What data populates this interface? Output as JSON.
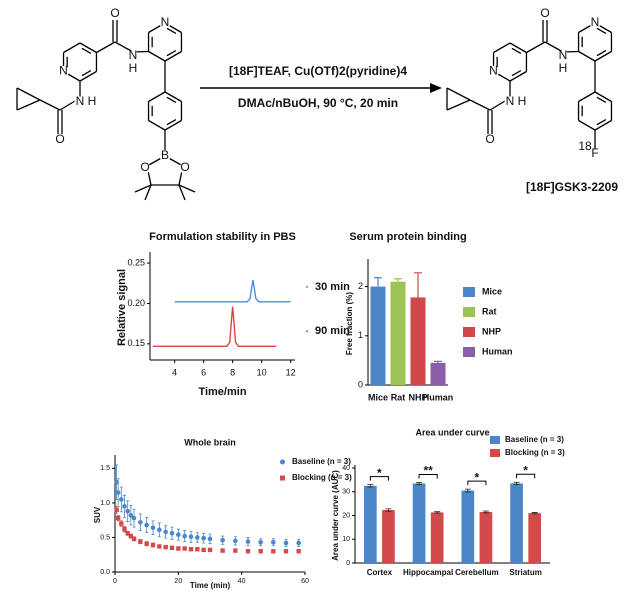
{
  "scheme": {
    "reactant_atoms": [
      "O",
      "N",
      "H",
      "N",
      "N",
      "N",
      "H",
      "O",
      "B",
      "O",
      "O"
    ],
    "product_atoms": [
      "O",
      "N",
      "H",
      "N",
      "N",
      "N",
      "H",
      "O",
      "F",
      "18"
    ],
    "conditions": [
      "[18F]TEAF, Cu(OTf)2(pyridine)4",
      "DMAc/nBuOH, 90 °C, 20 min"
    ],
    "product_name": "[18F]GSK3-2209"
  },
  "chart_data": [
    {
      "type": "line",
      "title": "Formulation stability in PBS",
      "x_label": "Time/min",
      "y_label": "Relative signal",
      "xlim": [
        2.3,
        12.3
      ],
      "xticks": [
        4,
        6,
        8,
        10,
        12
      ],
      "ylim": [
        0.13,
        0.26
      ],
      "yticks": [
        {
          "value": 0.15,
          "label": "0.15"
        },
        {
          "value": 0.2,
          "label": "0.20"
        },
        {
          "value": 0.25,
          "label": "0.25"
        }
      ],
      "series": [
        {
          "name": "30 min",
          "color": "#4a8fd6",
          "x": [
            4,
            9.0,
            9.2,
            9.3,
            9.4,
            9.5,
            9.6,
            9.8,
            12
          ],
          "values": [
            0.202,
            0.202,
            0.206,
            0.218,
            0.229,
            0.218,
            0.206,
            0.202,
            0.202
          ]
        },
        {
          "name": "90 min",
          "color": "#d9463f",
          "x": [
            2.5,
            7.6,
            7.8,
            7.9,
            8.0,
            8.1,
            8.2,
            8.4,
            11
          ],
          "values": [
            0.147,
            0.147,
            0.152,
            0.175,
            0.196,
            0.175,
            0.152,
            0.147,
            0.147
          ]
        }
      ]
    },
    {
      "type": "bar",
      "title": "Serum protein binding",
      "y_label": "Free fraction (%)",
      "categories": [
        "Mice",
        "Rat",
        "NHP",
        "Human"
      ],
      "values": [
        2.0,
        2.1,
        1.78,
        0.45
      ],
      "errors": [
        0.18,
        0.06,
        0.5,
        0.03
      ],
      "colors": [
        "#4a86c8",
        "#9bc454",
        "#d04848",
        "#8a5fa8"
      ],
      "ylim": [
        0,
        2.5
      ],
      "yticks": [
        0,
        1,
        2
      ]
    },
    {
      "type": "scatter",
      "title": "Whole brain",
      "x_label": "Time (min)",
      "y_label": "SUV",
      "xlim": [
        0,
        60
      ],
      "xticks": [
        0,
        20,
        40,
        60
      ],
      "ylim": [
        0,
        1.65
      ],
      "yticks": [
        {
          "value": 0,
          "label": "0.0"
        },
        {
          "value": 0.5,
          "label": "0.5"
        },
        {
          "value": 1,
          "label": "1.0"
        },
        {
          "value": 1.5,
          "label": "1.5"
        }
      ],
      "series": [
        {
          "name": "Baseline (n = 3)",
          "color": "#4a86c8",
          "marker": "circle",
          "x": [
            0.5,
            1,
            2,
            3,
            4,
            5,
            6,
            8,
            10,
            12,
            14,
            16,
            18,
            20,
            22,
            24,
            26,
            28,
            30,
            34,
            38,
            42,
            46,
            50,
            54,
            58
          ],
          "values": [
            1.3,
            1.15,
            1.05,
            0.95,
            0.88,
            0.82,
            0.78,
            0.72,
            0.68,
            0.64,
            0.61,
            0.58,
            0.56,
            0.54,
            0.52,
            0.51,
            0.5,
            0.49,
            0.48,
            0.46,
            0.45,
            0.44,
            0.43,
            0.43,
            0.42,
            0.42
          ],
          "errors": [
            0.25,
            0.2,
            0.18,
            0.16,
            0.15,
            0.14,
            0.13,
            0.12,
            0.11,
            0.1,
            0.1,
            0.09,
            0.09,
            0.08,
            0.08,
            0.08,
            0.07,
            0.07,
            0.07,
            0.06,
            0.06,
            0.06,
            0.05,
            0.05,
            0.05,
            0.05
          ]
        },
        {
          "name": "Blocking (n = 3)",
          "color": "#d24a4a",
          "marker": "square",
          "x": [
            0.5,
            1,
            2,
            3,
            4,
            5,
            6,
            8,
            10,
            12,
            14,
            16,
            18,
            20,
            22,
            24,
            26,
            28,
            30,
            34,
            38,
            42,
            46,
            50,
            54,
            58
          ],
          "values": [
            0.9,
            0.78,
            0.7,
            0.62,
            0.56,
            0.52,
            0.48,
            0.44,
            0.41,
            0.39,
            0.37,
            0.36,
            0.35,
            0.34,
            0.34,
            0.33,
            0.33,
            0.32,
            0.32,
            0.31,
            0.31,
            0.3,
            0.3,
            0.3,
            0.3,
            0.3
          ],
          "errors": [
            0.05,
            0.04,
            0.04,
            0.04,
            0.03,
            0.03,
            0.03,
            0.03,
            0.03,
            0.03,
            0.02,
            0.02,
            0.02,
            0.02,
            0.02,
            0.02,
            0.02,
            0.02,
            0.02,
            0.02,
            0.02,
            0.02,
            0.02,
            0.02,
            0.02,
            0.02
          ]
        }
      ]
    },
    {
      "type": "grouped_bar",
      "title": "Area under curve",
      "y_label": "Area under curve (AUC)",
      "categories": [
        "Cortex",
        "Hippocampal",
        "Cerebellum",
        "Striatum"
      ],
      "ylim": [
        0,
        40
      ],
      "yticks": [
        0,
        10,
        20,
        30,
        40
      ],
      "annotations": [
        "*",
        "**",
        "*",
        "*"
      ],
      "series": [
        {
          "name": "Baseline (n = 3)",
          "color": "#4a86c8",
          "values": [
            32.5,
            33.5,
            30.5,
            33.5
          ],
          "errors": [
            0.5,
            0.4,
            0.6,
            0.5
          ]
        },
        {
          "name": "Blocking (n = 3)",
          "color": "#d24a4a",
          "values": [
            22.3,
            21.3,
            21.5,
            21.0
          ],
          "errors": [
            0.5,
            0.3,
            0.4,
            0.3
          ]
        }
      ]
    }
  ]
}
